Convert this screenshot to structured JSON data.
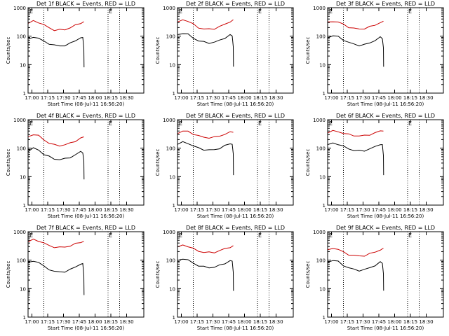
{
  "figure": {
    "panel_title_suffix": "BLACK = Events, RED = LLD",
    "xlabel": "Start Time (08-Jul-11 16:56:20)",
    "ylabel": "Counts/sec",
    "marker_letter": "E",
    "colors": {
      "events": "#000000",
      "lld": "#cc0000",
      "frame": "#000000"
    }
  },
  "chart_data": [
    {
      "type": "line",
      "title": "Det 1f BLACK = Events, RED = LLD",
      "xlabel": "Start Time (08-Jul-11 16:56:20)",
      "ylabel": "Counts/sec",
      "y_scale": "log",
      "ylim": [
        1,
        1000
      ],
      "yticks": [
        "1",
        "10",
        "100",
        "1000"
      ],
      "xticks": [
        "17:00",
        "17:15",
        "17:30",
        "17:45",
        "18:00",
        "18:15",
        "18:30"
      ],
      "xlim": [
        0,
        110
      ],
      "vlines": [
        15,
        76,
        87
      ],
      "marker": {
        "label": "E",
        "x": 76
      },
      "series": [
        {
          "name": "LLD",
          "color": "#cc0000",
          "x": [
            0,
            5,
            10,
            15,
            20,
            25,
            30,
            35,
            40,
            45,
            50,
            53
          ],
          "y": [
            280,
            340,
            310,
            250,
            195,
            165,
            165,
            170,
            200,
            240,
            290,
            320
          ]
        },
        {
          "name": "Events",
          "color": "#000000",
          "x": [
            0,
            5,
            10,
            15,
            20,
            25,
            30,
            35,
            40,
            45,
            50,
            52,
            53,
            53.2
          ],
          "y": [
            75,
            95,
            85,
            65,
            55,
            48,
            45,
            48,
            55,
            70,
            90,
            85,
            40,
            8
          ]
        }
      ]
    },
    {
      "type": "line",
      "title": "Det 2f BLACK = Events, RED = LLD",
      "xlabel": "Start Time (08-Jul-11 16:56:20)",
      "ylabel": "Counts/sec",
      "y_scale": "log",
      "ylim": [
        1,
        1000
      ],
      "yticks": [
        "1",
        "10",
        "100",
        "1000"
      ],
      "xticks": [
        "17:00",
        "17:15",
        "17:30",
        "17:45",
        "18:00",
        "18:15",
        "18:30"
      ],
      "xlim": [
        0,
        110
      ],
      "vlines": [
        15,
        76,
        87
      ],
      "marker": {
        "label": "E",
        "x": 76
      },
      "series": [
        {
          "name": "LLD",
          "color": "#cc0000",
          "x": [
            0,
            5,
            10,
            15,
            20,
            25,
            30,
            35,
            40,
            45,
            50,
            53
          ],
          "y": [
            300,
            380,
            340,
            260,
            200,
            180,
            175,
            185,
            215,
            260,
            330,
            360
          ]
        },
        {
          "name": "Events",
          "color": "#000000",
          "x": [
            0,
            5,
            10,
            15,
            20,
            25,
            30,
            35,
            40,
            45,
            50,
            52,
            53,
            53.2
          ],
          "y": [
            110,
            130,
            115,
            85,
            70,
            62,
            58,
            62,
            70,
            88,
            110,
            100,
            45,
            8
          ]
        }
      ]
    },
    {
      "type": "line",
      "title": "Det 3f BLACK = Events, RED = LLD",
      "xlabel": "Start Time (08-Jul-11 16:56:20)",
      "ylabel": "Counts/sec",
      "y_scale": "log",
      "ylim": [
        1,
        1000
      ],
      "yticks": [
        "1",
        "10",
        "100",
        "1000"
      ],
      "xticks": [
        "17:00",
        "17:15",
        "17:30",
        "17:45",
        "18:00",
        "18:15",
        "18:30"
      ],
      "xlim": [
        0,
        110
      ],
      "vlines": [
        15,
        76,
        87
      ],
      "marker": {
        "label": "E",
        "x": 76
      },
      "series": [
        {
          "name": "LLD",
          "color": "#cc0000",
          "x": [
            0,
            5,
            10,
            15,
            20,
            25,
            30,
            35,
            40,
            45,
            50,
            53
          ],
          "y": [
            300,
            340,
            310,
            260,
            210,
            185,
            180,
            185,
            210,
            250,
            300,
            320
          ]
        },
        {
          "name": "Events",
          "color": "#000000",
          "x": [
            0,
            5,
            10,
            15,
            20,
            25,
            30,
            35,
            40,
            45,
            50,
            52,
            53,
            53.2
          ],
          "y": [
            90,
            105,
            95,
            75,
            60,
            52,
            48,
            50,
            58,
            72,
            90,
            85,
            40,
            8
          ]
        }
      ]
    },
    {
      "type": "line",
      "title": "Det 4f BLACK = Events, RED = LLD",
      "xlabel": "Start Time (08-Jul-11 16:56:20)",
      "ylabel": "Counts/sec",
      "y_scale": "log",
      "ylim": [
        1,
        1000
      ],
      "yticks": [
        "1",
        "10",
        "100",
        "1000"
      ],
      "xticks": [
        "17:00",
        "17:15",
        "17:30",
        "17:45",
        "18:00",
        "18:15",
        "18:30"
      ],
      "xlim": [
        0,
        110
      ],
      "vlines": [
        15,
        76,
        87
      ],
      "marker": {
        "label": "E",
        "x": 76
      },
      "series": [
        {
          "name": "LLD",
          "color": "#cc0000",
          "x": [
            0,
            5,
            10,
            15,
            20,
            25,
            30,
            35,
            40,
            45,
            50,
            53
          ],
          "y": [
            250,
            310,
            270,
            200,
            150,
            130,
            125,
            130,
            150,
            180,
            220,
            250
          ]
        },
        {
          "name": "Events",
          "color": "#000000",
          "x": [
            0,
            5,
            10,
            15,
            20,
            25,
            30,
            35,
            40,
            45,
            50,
            52,
            53,
            53.2
          ],
          "y": [
            80,
            100,
            85,
            62,
            50,
            42,
            40,
            42,
            48,
            58,
            75,
            72,
            35,
            8
          ]
        }
      ]
    },
    {
      "type": "line",
      "title": "Det 5f BLACK = Events, RED = LLD",
      "xlabel": "Start Time (08-Jul-11 16:56:20)",
      "ylabel": "Counts/sec",
      "y_scale": "log",
      "ylim": [
        1,
        1000
      ],
      "yticks": [
        "1",
        "10",
        "100",
        "1000"
      ],
      "xticks": [
        "17:00",
        "17:15",
        "17:30",
        "17:45",
        "18:00",
        "18:15",
        "18:30"
      ],
      "xlim": [
        0,
        110
      ],
      "vlines": [
        15,
        76,
        87
      ],
      "marker": {
        "label": "E",
        "x": 76
      },
      "series": [
        {
          "name": "LLD",
          "color": "#cc0000",
          "x": [
            0,
            5,
            10,
            15,
            20,
            25,
            30,
            35,
            40,
            45,
            50,
            53
          ],
          "y": [
            340,
            400,
            380,
            320,
            270,
            240,
            235,
            240,
            270,
            310,
            360,
            380
          ]
        },
        {
          "name": "Events",
          "color": "#000000",
          "x": [
            0,
            5,
            10,
            15,
            20,
            25,
            30,
            35,
            40,
            45,
            50,
            52,
            53,
            53.2
          ],
          "y": [
            140,
            160,
            150,
            120,
            100,
            90,
            85,
            88,
            100,
            120,
            145,
            140,
            60,
            12
          ]
        }
      ]
    },
    {
      "type": "line",
      "title": "Det 6f BLACK = Events, RED = LLD",
      "xlabel": "Start Time (08-Jul-11 16:56:20)",
      "ylabel": "Counts/sec",
      "y_scale": "log",
      "ylim": [
        1,
        1000
      ],
      "yticks": [
        "1",
        "10",
        "100",
        "1000"
      ],
      "xticks": [
        "17:00",
        "17:15",
        "17:30",
        "17:45",
        "18:00",
        "18:15",
        "18:30"
      ],
      "xlim": [
        0,
        110
      ],
      "vlines": [
        15,
        76,
        87
      ],
      "marker": {
        "label": "E",
        "x": 76
      },
      "series": [
        {
          "name": "LLD",
          "color": "#cc0000",
          "x": [
            0,
            5,
            10,
            15,
            20,
            25,
            30,
            35,
            40,
            45,
            50,
            53
          ],
          "y": [
            360,
            400,
            380,
            340,
            300,
            280,
            270,
            275,
            300,
            340,
            400,
            420
          ]
        },
        {
          "name": "Events",
          "color": "#000000",
          "x": [
            0,
            5,
            10,
            15,
            20,
            25,
            30,
            35,
            40,
            45,
            50,
            52,
            53,
            53.2
          ],
          "y": [
            130,
            150,
            140,
            115,
            95,
            85,
            80,
            82,
            95,
            110,
            140,
            130,
            55,
            12
          ]
        }
      ]
    },
    {
      "type": "line",
      "title": "Det 7f BLACK = Events, RED = LLD",
      "xlabel": "Start Time (08-Jul-11 16:56:20)",
      "ylabel": "Counts/sec",
      "y_scale": "log",
      "ylim": [
        1,
        1000
      ],
      "yticks": [
        "1",
        "10",
        "100",
        "1000"
      ],
      "xticks": [
        "17:00",
        "17:15",
        "17:30",
        "17:45",
        "18:00",
        "18:15",
        "18:30"
      ],
      "xlim": [
        0,
        110
      ],
      "vlines": [
        15,
        76,
        87
      ],
      "marker": {
        "label": "E",
        "x": 76
      },
      "series": [
        {
          "name": "LLD",
          "color": "#cc0000",
          "x": [
            0,
            5,
            10,
            15,
            20,
            25,
            30,
            35,
            40,
            45,
            50,
            53
          ],
          "y": [
            450,
            520,
            480,
            400,
            320,
            290,
            280,
            290,
            320,
            370,
            430,
            460
          ]
        },
        {
          "name": "Events",
          "color": "#000000",
          "x": [
            0,
            5,
            10,
            15,
            20,
            25,
            30,
            35,
            40,
            45,
            50,
            52,
            53,
            53.2
          ],
          "y": [
            80,
            95,
            85,
            60,
            48,
            40,
            38,
            40,
            46,
            58,
            75,
            72,
            30,
            6
          ]
        }
      ]
    },
    {
      "type": "line",
      "title": "Det 8f BLACK = Events, RED = LLD",
      "xlabel": "Start Time (08-Jul-11 16:56:20)",
      "ylabel": "Counts/sec",
      "y_scale": "log",
      "ylim": [
        1,
        1000
      ],
      "yticks": [
        "1",
        "10",
        "100",
        "1000"
      ],
      "xticks": [
        "17:00",
        "17:15",
        "17:30",
        "17:45",
        "18:00",
        "18:15",
        "18:30"
      ],
      "xlim": [
        0,
        110
      ],
      "vlines": [
        15,
        76,
        87
      ],
      "marker": {
        "label": "E",
        "x": 76
      },
      "series": [
        {
          "name": "LLD",
          "color": "#cc0000",
          "x": [
            0,
            5,
            10,
            15,
            20,
            25,
            30,
            35,
            40,
            45,
            50,
            53
          ],
          "y": [
            280,
            340,
            310,
            250,
            210,
            190,
            185,
            190,
            215,
            250,
            290,
            310
          ]
        },
        {
          "name": "Events",
          "color": "#000000",
          "x": [
            0,
            5,
            10,
            15,
            20,
            25,
            30,
            35,
            40,
            45,
            50,
            52,
            53,
            53.2
          ],
          "y": [
            95,
            115,
            100,
            78,
            65,
            58,
            55,
            57,
            65,
            78,
            95,
            90,
            40,
            8
          ]
        }
      ]
    },
    {
      "type": "line",
      "title": "Det 9f BLACK = Events, RED = LLD",
      "xlabel": "Start Time (08-Jul-11 16:56:20)",
      "ylabel": "Counts/sec",
      "y_scale": "log",
      "ylim": [
        1,
        1000
      ],
      "yticks": [
        "1",
        "10",
        "100",
        "1000"
      ],
      "xticks": [
        "17:00",
        "17:15",
        "17:30",
        "17:45",
        "18:00",
        "18:15",
        "18:30"
      ],
      "xlim": [
        0,
        110
      ],
      "vlines": [
        15,
        76,
        87
      ],
      "marker": {
        "label": "E",
        "x": 76
      },
      "series": [
        {
          "name": "LLD",
          "color": "#cc0000",
          "x": [
            0,
            5,
            10,
            15,
            20,
            25,
            30,
            35,
            40,
            45,
            50,
            53
          ],
          "y": [
            220,
            270,
            240,
            190,
            160,
            145,
            140,
            145,
            165,
            195,
            230,
            250
          ]
        },
        {
          "name": "Events",
          "color": "#000000",
          "x": [
            0,
            5,
            10,
            15,
            20,
            25,
            30,
            35,
            40,
            45,
            50,
            52,
            53,
            53.2
          ],
          "y": [
            85,
            100,
            88,
            66,
            54,
            47,
            44,
            46,
            54,
            66,
            84,
            80,
            35,
            8
          ]
        }
      ]
    }
  ]
}
